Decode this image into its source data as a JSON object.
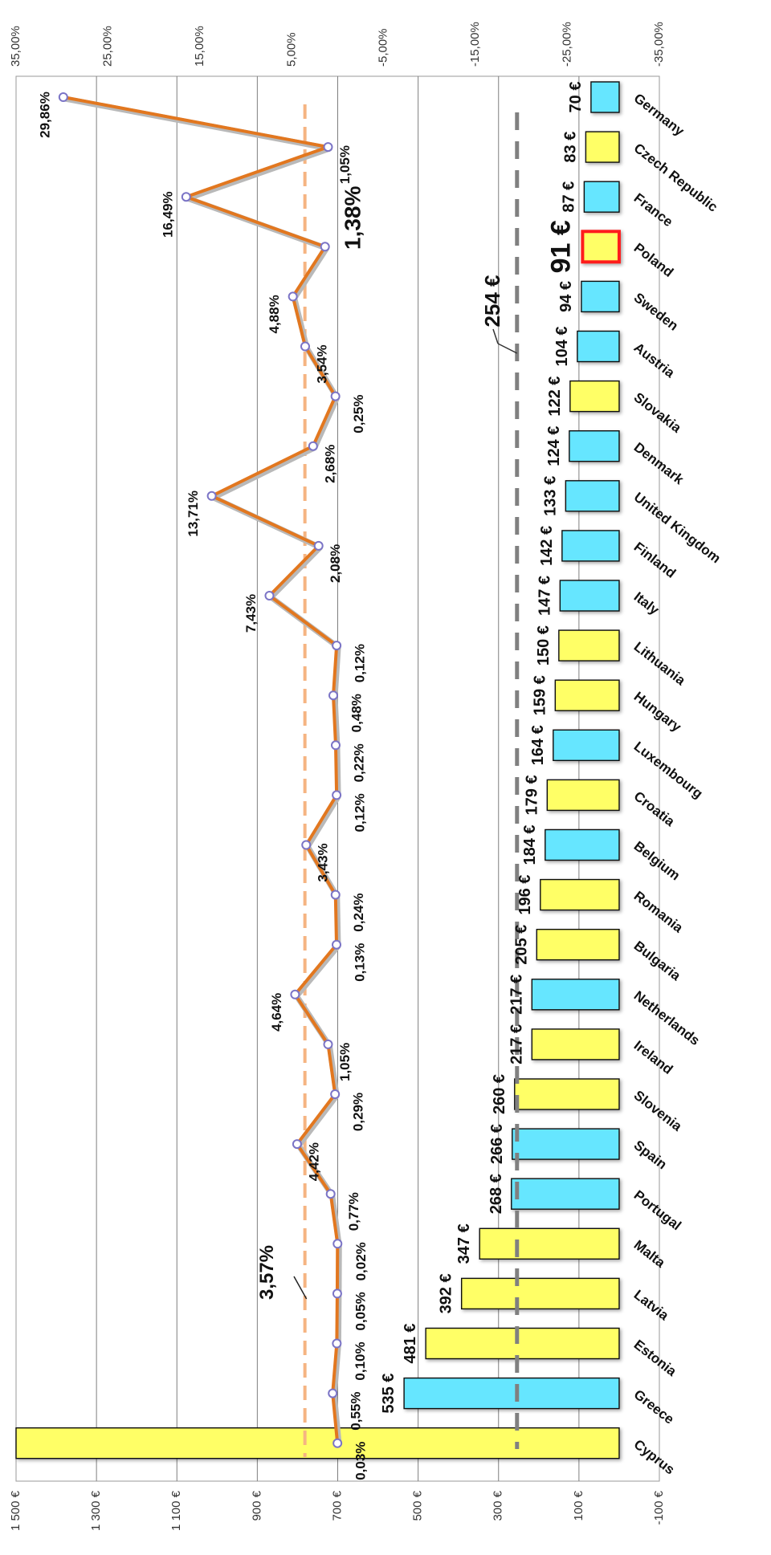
{
  "chart_data": {
    "type": "bar+line",
    "orientation": "rotated-90",
    "categories": [
      "Cyprus",
      "Greece",
      "Estonia",
      "Latvia",
      "Malta",
      "Portugal",
      "Spain",
      "Slovenia",
      "Ireland",
      "Netherlands",
      "Bulgaria",
      "Romania",
      "Belgium",
      "Croatia",
      "Luxembourg",
      "Hungary",
      "Lithuania",
      "Italy",
      "Finland",
      "United Kingdom",
      "Denmark",
      "Slovakia",
      "Austria",
      "Sweden",
      "Poland",
      "France",
      "Czech Republic",
      "Germany"
    ],
    "bar_series": {
      "axis": "left",
      "values": [
        1500,
        535,
        481,
        392,
        347,
        268,
        266,
        260,
        217,
        217,
        205,
        196,
        184,
        179,
        164,
        159,
        150,
        147,
        142,
        133,
        124,
        122,
        104,
        94,
        91,
        87,
        83,
        70
      ],
      "labels": [
        "",
        "535 €",
        "481 €",
        "392 €",
        "347 €",
        "268 €",
        "266 €",
        "260 €",
        "217 €",
        "217 €",
        "205 €",
        "196 €",
        "184 €",
        "179 €",
        "164 €",
        "159 €",
        "150 €",
        "147 €",
        "142 €",
        "133 €",
        "124 €",
        "122 €",
        "104 €",
        "94 €",
        "91 €",
        "87 €",
        "83 €",
        "70 €"
      ],
      "colors": [
        "yellow",
        "cyan",
        "yellow",
        "yellow",
        "yellow",
        "cyan",
        "cyan",
        "yellow",
        "yellow",
        "cyan",
        "yellow",
        "yellow",
        "cyan",
        "yellow",
        "cyan",
        "yellow",
        "yellow",
        "cyan",
        "cyan",
        "cyan",
        "cyan",
        "yellow",
        "cyan",
        "cyan",
        "yellow",
        "cyan",
        "yellow",
        "cyan"
      ]
    },
    "line_series": {
      "axis": "right",
      "values": [
        0.03,
        0.55,
        0.1,
        0.05,
        0.02,
        0.77,
        4.42,
        0.29,
        1.05,
        4.64,
        0.13,
        0.24,
        3.43,
        0.12,
        0.22,
        0.48,
        0.12,
        7.43,
        2.08,
        13.71,
        2.68,
        0.25,
        3.54,
        4.88,
        1.38,
        16.49,
        1.05,
        29.86
      ],
      "labels": [
        "0,03%",
        "0,55%",
        "0,10%",
        "0,05%",
        "0,02%",
        "0,77%",
        "4,42%",
        "0,29%",
        "1,05%",
        "4,64%",
        "0,13%",
        "0,24%",
        "3,43%",
        "0,12%",
        "0,22%",
        "0,48%",
        "0,12%",
        "7,43%",
        "2,08%",
        "13,71%",
        "2,68%",
        "0,25%",
        "3,54%",
        "4,88%",
        "1,38%",
        "16,49%",
        "1,05%",
        "29,86%"
      ]
    },
    "average_cost": {
      "value": 254,
      "label": "254 €"
    },
    "average_rate": {
      "value": 3.57,
      "label": "3,57%"
    },
    "highlight": {
      "category": "Poland",
      "cost_label": "91 €",
      "rate_label": "1,38%"
    },
    "left_axis": {
      "min": -100,
      "max": 1500,
      "ticks": [
        "-100 €",
        "100 €",
        "300 €",
        "500 €",
        "700 €",
        "900 €",
        "1 100 €",
        "1 300 €",
        "1 500 €"
      ],
      "tick_values": [
        -100,
        100,
        300,
        500,
        700,
        900,
        1100,
        1300,
        1500
      ]
    },
    "right_axis": {
      "min": -35,
      "max": 35,
      "ticks": [
        "-35,00%",
        "-25,00%",
        "-15,00%",
        "-5,00%",
        "5,00%",
        "15,00%",
        "25,00%",
        "35,00%"
      ],
      "tick_values": [
        -35,
        -25,
        -15,
        -5,
        5,
        15,
        25,
        35
      ]
    },
    "grid": true,
    "colors": {
      "yellow": "#ffff66",
      "cyan": "#66e6ff",
      "line": "#e2771f",
      "avg_rate": "#f5b482",
      "avg_cost": "#808080",
      "highlight": "#ff1a1a",
      "marker": "#7b74c6"
    }
  }
}
